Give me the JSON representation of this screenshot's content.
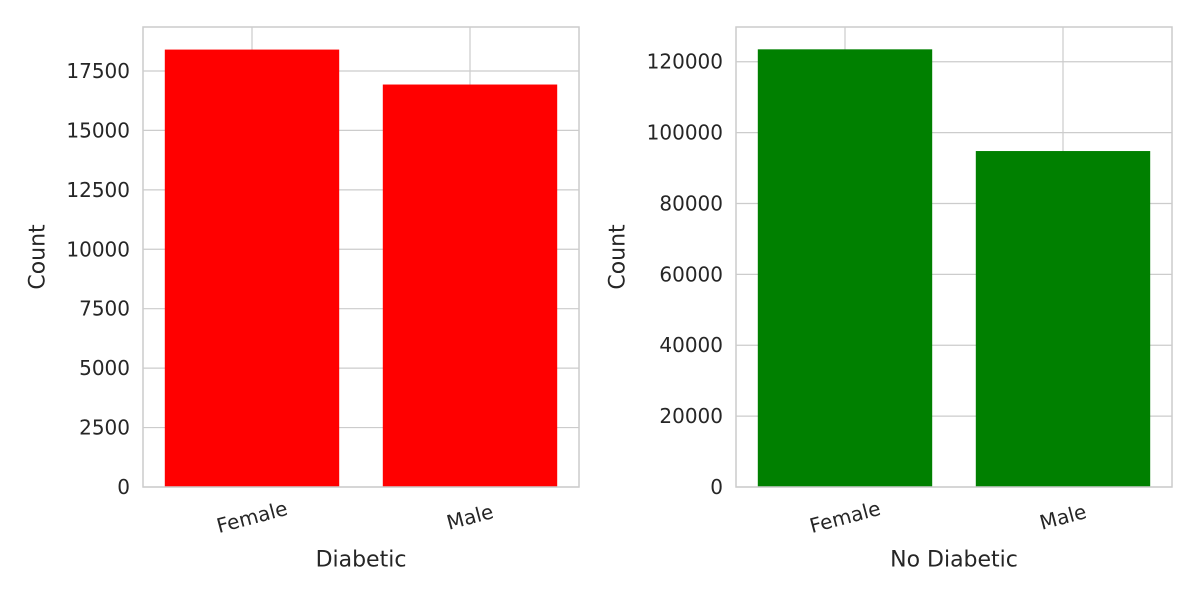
{
  "chart_data": [
    {
      "type": "bar",
      "categories": [
        "Female",
        "Male"
      ],
      "values": [
        18400,
        16930
      ],
      "color": "#ff0000",
      "xlabel": "Diabetic",
      "ylabel": "Count",
      "ylim": [
        0,
        19350
      ],
      "yticks": [
        0,
        2500,
        5000,
        7500,
        10000,
        12500,
        15000,
        17500
      ],
      "grid": true
    },
    {
      "type": "bar",
      "categories": [
        "Female",
        "Male"
      ],
      "values": [
        123500,
        94800
      ],
      "color": "#008000",
      "xlabel": "No Diabetic",
      "ylabel": "Count",
      "ylim": [
        0,
        129800
      ],
      "yticks": [
        0,
        20000,
        40000,
        60000,
        80000,
        100000,
        120000
      ],
      "grid": true
    }
  ]
}
